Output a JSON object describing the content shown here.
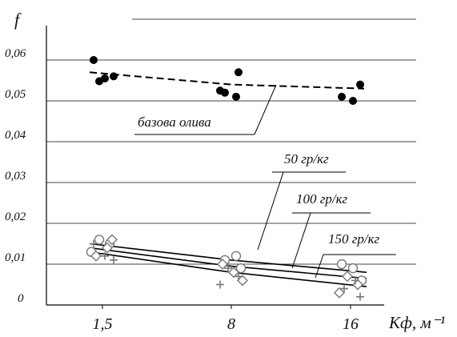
{
  "chart_data": {
    "type": "scatter",
    "ylabel": "f",
    "xlabel": "Kф, м⁻¹",
    "x_ticks": [
      "1,5",
      "8",
      "16"
    ],
    "y_ticks": [
      "0",
      "0,01",
      "0,02",
      "0,03",
      "0,04",
      "0,05",
      "0,06"
    ],
    "ylim": [
      0,
      0.065
    ],
    "grid": "horizontal",
    "series": [
      {
        "name": "базова олива",
        "marker": "filled-circle",
        "trend": [
          0.057,
          0.054,
          0.053
        ],
        "points": [
          [
            1.5,
            0.06
          ],
          [
            1.5,
            0.0555
          ],
          [
            1.5,
            0.056
          ],
          [
            1.5,
            0.0548
          ],
          [
            8,
            0.057
          ],
          [
            8,
            0.0525
          ],
          [
            8,
            0.051
          ],
          [
            8,
            0.052
          ],
          [
            16,
            0.054
          ],
          [
            16,
            0.051
          ],
          [
            16,
            0.05
          ]
        ]
      },
      {
        "name": "50 гр/кг",
        "marker": "open-circle",
        "trend": [
          0.015,
          0.011,
          0.008
        ],
        "points": [
          [
            1.5,
            0.016
          ],
          [
            1.5,
            0.015
          ],
          [
            1.5,
            0.013
          ],
          [
            8,
            0.012
          ],
          [
            8,
            0.011
          ],
          [
            8,
            0.009
          ],
          [
            16,
            0.01
          ],
          [
            16,
            0.009
          ],
          [
            16,
            0.006
          ]
        ]
      },
      {
        "name": "100 гр/кг",
        "marker": "open-diamond",
        "trend": [
          0.014,
          0.0095,
          0.0065
        ],
        "points": [
          [
            1.5,
            0.014
          ],
          [
            1.5,
            0.012
          ],
          [
            1.5,
            0.016
          ],
          [
            8,
            0.01
          ],
          [
            8,
            0.008
          ],
          [
            8,
            0.006
          ],
          [
            16,
            0.007
          ],
          [
            16,
            0.005
          ],
          [
            16,
            0.003
          ]
        ]
      },
      {
        "name": "150 гр/кг",
        "marker": "cross",
        "trend": [
          0.013,
          0.008,
          0.0045
        ],
        "points": [
          [
            1.5,
            0.015
          ],
          [
            1.5,
            0.012
          ],
          [
            1.5,
            0.011
          ],
          [
            8,
            0.009
          ],
          [
            8,
            0.007
          ],
          [
            8,
            0.005
          ],
          [
            16,
            0.006
          ],
          [
            16,
            0.004
          ],
          [
            16,
            0.002
          ]
        ]
      }
    ]
  }
}
